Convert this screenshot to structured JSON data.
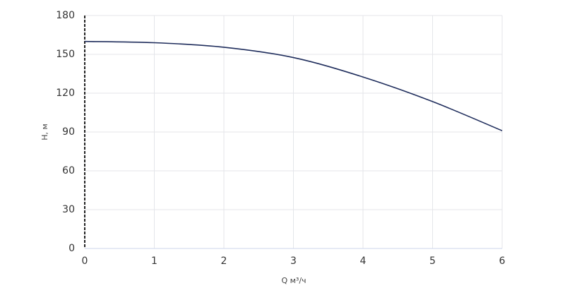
{
  "chart_data": {
    "type": "line",
    "x_label": "Q м³/ч",
    "y_label": "H, м",
    "x": [
      0,
      1,
      2,
      3,
      4,
      5,
      6
    ],
    "series": [
      {
        "color": "#1f2d5c",
        "values": [
          160,
          159,
          155.5,
          147.5,
          132.5,
          113.5,
          91
        ]
      }
    ],
    "xlim": [
      0,
      6
    ],
    "xticks": [
      0,
      1,
      2,
      3,
      4,
      5,
      6
    ],
    "ylim": [
      0,
      180
    ],
    "yticks": [
      0,
      30,
      60,
      90,
      120,
      150,
      180
    ],
    "grid": true
  }
}
